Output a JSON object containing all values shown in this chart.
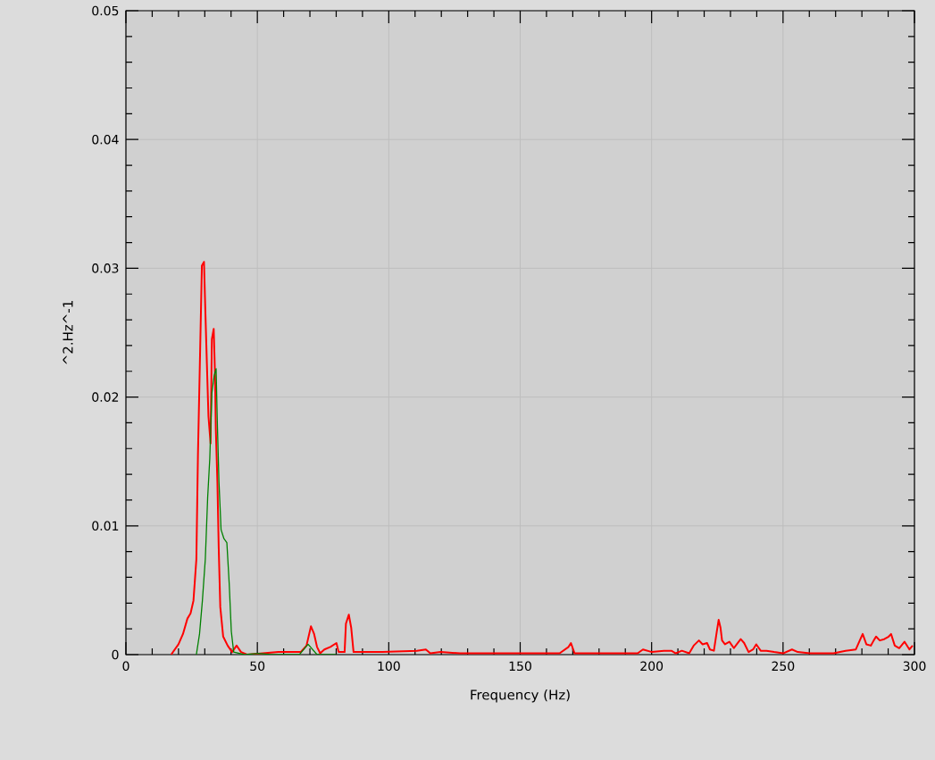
{
  "chart_data": {
    "type": "line",
    "xlabel": "Frequency (Hz)",
    "ylabel": "^2.Hz^-1",
    "xlim": [
      0,
      300
    ],
    "ylim": [
      0,
      0.05
    ],
    "xticks": [
      0,
      50,
      100,
      150,
      200,
      250,
      300
    ],
    "yticks": [
      0,
      0.01,
      0.02,
      0.03,
      0.04,
      0.05
    ],
    "grid": true,
    "series": [
      {
        "color": "#ff0000",
        "x": [
          17.2,
          20,
          21.7,
          23.4,
          24.6,
          25.7,
          26.8,
          27.4,
          28.2,
          28.9,
          29.7,
          30.2,
          30.8,
          31.4,
          32.2,
          32.7,
          33.4,
          33.9,
          34.2,
          34.8,
          35.3,
          35.9,
          37.0,
          38.7,
          40.4,
          42.1,
          43.8,
          46.1,
          58,
          64,
          66.5,
          68.7,
          70.4,
          71.6,
          72.7,
          73.9,
          75.5,
          77.8,
          80.1,
          80.9,
          83.2,
          83.7,
          84.8,
          85.7,
          86.6,
          93.1,
          97.6,
          110.7,
          114.1,
          115.8,
          119.7,
          127.1,
          165.0,
          168.4,
          169.3,
          170.7,
          176.3,
          194.7,
          196.7,
          200.1,
          204.7,
          207.5,
          209.2,
          211.5,
          214.3,
          216.0,
          218.0,
          219.4,
          221.1,
          222.2,
          223.7,
          224.8,
          225.5,
          226.2,
          226.8,
          227.9,
          229.6,
          231.3,
          232.4,
          233.9,
          235.2,
          236.9,
          238.6,
          239.8,
          241.5,
          243.7,
          246.6,
          250.0,
          253.4,
          255.6,
          260.2,
          264.7,
          269.2,
          273.8,
          277.7,
          279.2,
          280.3,
          281.7,
          283.4,
          284.5,
          285.4,
          286.8,
          288.5,
          290.2,
          291.1,
          292.5,
          294.2,
          296.2,
          298.1,
          299.3
        ],
        "values": [
          0,
          0.0008,
          0.0016,
          0.0028,
          0.0032,
          0.0042,
          0.0074,
          0.0155,
          0.0233,
          0.0302,
          0.0305,
          0.0268,
          0.0226,
          0.0185,
          0.0164,
          0.0245,
          0.0253,
          0.0217,
          0.0175,
          0.0134,
          0.0083,
          0.0037,
          0.0014,
          0.0007,
          0.0002,
          0.0007,
          0.0002,
          0,
          0.0002,
          0.0002,
          0.0002,
          0.0007,
          0.0022,
          0.0016,
          0.0006,
          0.0001,
          0.0004,
          0.0006,
          0.0009,
          0.0002,
          0.0002,
          0.0024,
          0.0031,
          0.0021,
          0.0002,
          0.0002,
          0.0002,
          0.0003,
          0.0004,
          0.0001,
          0.0002,
          0.0001,
          0.0001,
          0.0006,
          0.0009,
          0.0001,
          0.0001,
          0.0001,
          0.0004,
          0.0002,
          0.0003,
          0.0003,
          0.0001,
          0.0003,
          0.0001,
          0.0007,
          0.0011,
          0.0008,
          0.0009,
          0.0004,
          0.0003,
          0.0018,
          0.0027,
          0.0021,
          0.0011,
          0.0008,
          0.001,
          0.0005,
          0.0008,
          0.0012,
          0.0009,
          0.0002,
          0.0004,
          0.0008,
          0.0003,
          0.0003,
          0.0002,
          0.0001,
          0.0004,
          0.0002,
          0.0001,
          0.0001,
          0.0001,
          0.0003,
          0.0004,
          0.0011,
          0.0016,
          0.0008,
          0.0007,
          0.0011,
          0.0014,
          0.0011,
          0.0012,
          0.0014,
          0.0016,
          0.0007,
          0.0005,
          0.001,
          0.0004,
          0.0007
        ]
      },
      {
        "color": "#008000",
        "x": [
          26.8,
          28.0,
          29.1,
          30.2,
          31.1,
          31.9,
          32.7,
          33.6,
          34.3,
          34.8,
          35.4,
          36.2,
          37.3,
          38.4,
          39.3,
          40.1,
          41.0,
          45,
          50.6,
          55,
          66,
          69.3,
          72.7,
          80
        ],
        "values": [
          0,
          0.0016,
          0.0042,
          0.0074,
          0.0122,
          0.0152,
          0.0203,
          0.0217,
          0.0222,
          0.0178,
          0.0134,
          0.0097,
          0.009,
          0.0087,
          0.0055,
          0.0018,
          0.0002,
          0,
          0.0001,
          0,
          0,
          0.0008,
          0,
          0
        ]
      }
    ]
  }
}
